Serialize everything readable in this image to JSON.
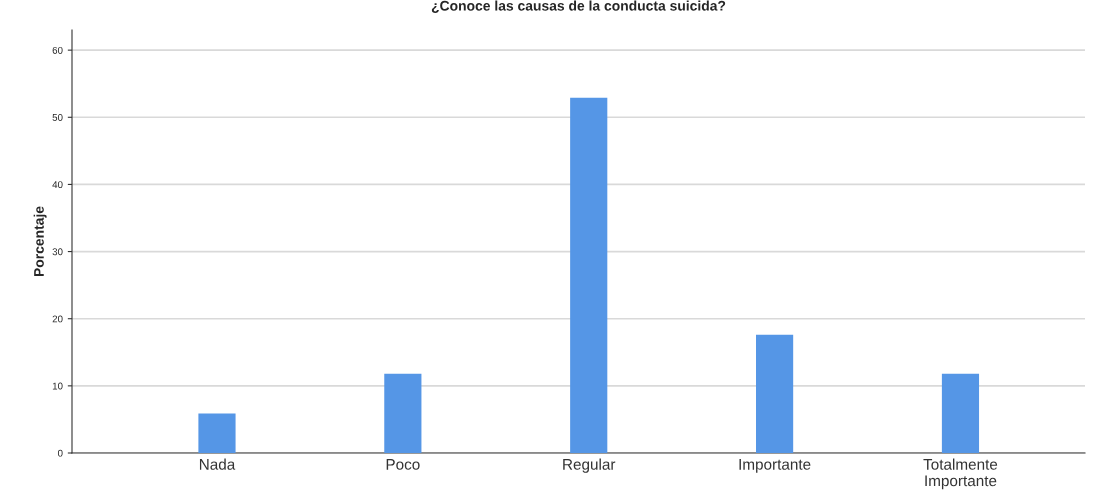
{
  "chart_data": {
    "type": "bar",
    "title": "¿Conoce las causas de la conducta suicida?",
    "ylabel": "Porcentaje",
    "categories": [
      "Nada",
      "Poco",
      "Regular",
      "Importante",
      "Totalmente\nImportante"
    ],
    "values": [
      5.9,
      11.8,
      52.9,
      17.6,
      11.8
    ],
    "color": "#5596e6",
    "ylim": [
      0,
      63
    ],
    "yticks": [
      0,
      10,
      20,
      30,
      40,
      50,
      60
    ],
    "grid": "y"
  }
}
